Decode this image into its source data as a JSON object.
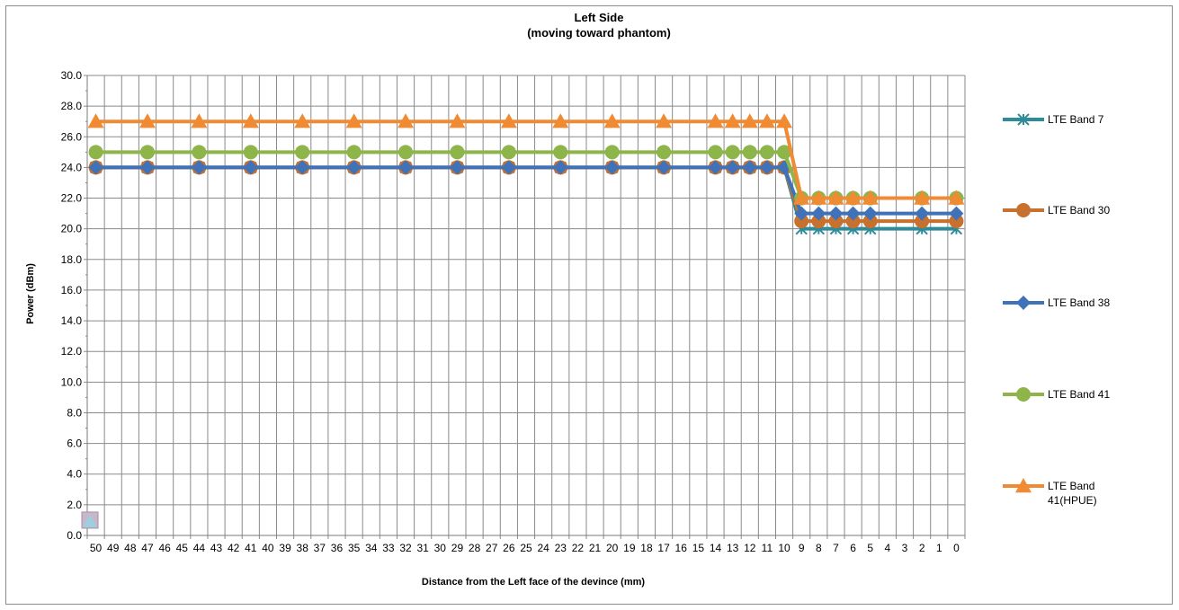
{
  "chart_data": {
    "type": "line",
    "title": "Left Side",
    "subtitle": "(moving toward phantom)",
    "xlabel": "Distance from the Left  face of the devince (mm)",
    "ylabel": "Power (dBm)",
    "ylim": [
      0,
      30
    ],
    "y_ticks": [
      "0.0",
      "2.0",
      "4.0",
      "6.0",
      "8.0",
      "10.0",
      "12.0",
      "14.0",
      "16.0",
      "18.0",
      "20.0",
      "22.0",
      "24.0",
      "26.0",
      "28.0",
      "30.0"
    ],
    "x_categories": [
      "50",
      "49",
      "48",
      "47",
      "46",
      "45",
      "44",
      "43",
      "42",
      "41",
      "40",
      "39",
      "38",
      "37",
      "36",
      "35",
      "34",
      "33",
      "32",
      "31",
      "30",
      "29",
      "28",
      "27",
      "26",
      "25",
      "24",
      "23",
      "22",
      "21",
      "20",
      "19",
      "18",
      "17",
      "16",
      "15",
      "14",
      "13",
      "12",
      "11",
      "10",
      "9",
      "8",
      "7",
      "6",
      "5",
      "4",
      "3",
      "2",
      "1",
      "0"
    ],
    "grid": true,
    "legend_position": "right",
    "series": [
      {
        "name": "LTE Band 7",
        "color": "#2e8b9a",
        "marker": "star",
        "x": [
          50,
          47,
          44,
          41,
          38,
          35,
          32,
          29,
          26,
          23,
          20,
          17,
          14,
          13,
          12,
          11,
          10,
          9,
          8,
          7,
          6,
          5,
          2,
          0
        ],
        "y": [
          24,
          24,
          24,
          24,
          24,
          24,
          24,
          24,
          24,
          24,
          24,
          24,
          24,
          24,
          24,
          24,
          24,
          20,
          20,
          20,
          20,
          20,
          20,
          20
        ]
      },
      {
        "name": "LTE Band 30",
        "color": "#c8702e",
        "marker": "circle",
        "x": [
          50,
          47,
          44,
          41,
          38,
          35,
          32,
          29,
          26,
          23,
          20,
          17,
          14,
          13,
          12,
          11,
          10,
          9,
          8,
          7,
          6,
          5,
          2,
          0
        ],
        "y": [
          24,
          24,
          24,
          24,
          24,
          24,
          24,
          24,
          24,
          24,
          24,
          24,
          24,
          24,
          24,
          24,
          24,
          20.5,
          20.5,
          20.5,
          20.5,
          20.5,
          20.5,
          20.5
        ]
      },
      {
        "name": "LTE Band 38",
        "color": "#3f72b8",
        "marker": "diamond",
        "x": [
          50,
          47,
          44,
          41,
          38,
          35,
          32,
          29,
          26,
          23,
          20,
          17,
          14,
          13,
          12,
          11,
          10,
          9,
          8,
          7,
          6,
          5,
          2,
          0
        ],
        "y": [
          24,
          24,
          24,
          24,
          24,
          24,
          24,
          24,
          24,
          24,
          24,
          24,
          24,
          24,
          24,
          24,
          24,
          21,
          21,
          21,
          21,
          21,
          21,
          21
        ]
      },
      {
        "name": "LTE Band 41",
        "color": "#8db54a",
        "marker": "circle",
        "x": [
          50,
          47,
          44,
          41,
          38,
          35,
          32,
          29,
          26,
          23,
          20,
          17,
          14,
          13,
          12,
          11,
          10,
          9,
          8,
          7,
          6,
          5,
          2,
          0
        ],
        "y": [
          25,
          25,
          25,
          25,
          25,
          25,
          25,
          25,
          25,
          25,
          25,
          25,
          25,
          25,
          25,
          25,
          25,
          22,
          22,
          22,
          22,
          22,
          22,
          22
        ]
      },
      {
        "name": "LTE Band 41(HPUE)",
        "legend_lines": [
          "LTE Band",
          "41(HPUE)"
        ],
        "color": "#f08a33",
        "marker": "triangle",
        "x": [
          50,
          47,
          44,
          41,
          38,
          35,
          32,
          29,
          26,
          23,
          20,
          17,
          14,
          13,
          12,
          11,
          10,
          9,
          8,
          7,
          6,
          5,
          2,
          0
        ],
        "y": [
          27,
          27,
          27,
          27,
          27,
          27,
          27,
          27,
          27,
          27,
          27,
          27,
          27,
          27,
          27,
          27,
          27,
          22,
          22,
          22,
          22,
          22,
          22,
          22
        ]
      }
    ]
  }
}
